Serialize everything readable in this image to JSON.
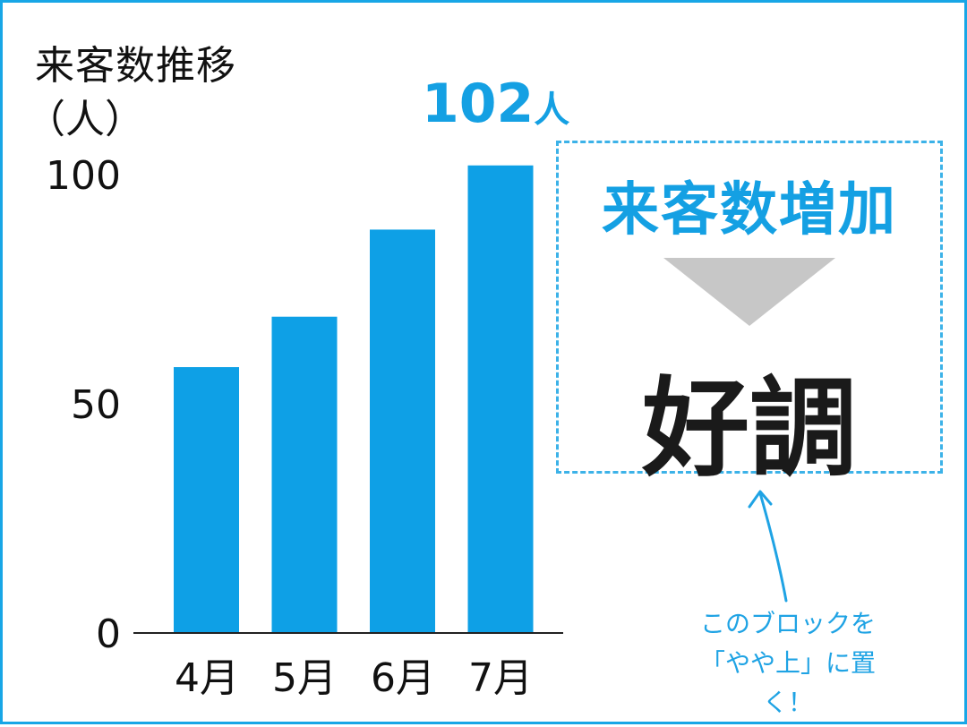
{
  "chart_data": {
    "type": "bar",
    "title": "来客数推移",
    "ylabel": "（人）",
    "categories": [
      "4月",
      "5月",
      "6月",
      "7月"
    ],
    "values": [
      58,
      69,
      88,
      102
    ],
    "ylim": [
      0,
      100
    ],
    "yticks": [
      "100",
      "50",
      "0"
    ],
    "grid": false,
    "bar_color": "#0ea0e6"
  },
  "callout": {
    "value": "102",
    "unit": "人",
    "color": "#14a0e3"
  },
  "summary": {
    "increase_label": "来客数増加",
    "result_label": "好調",
    "arrow_color": "#c7c7c7"
  },
  "note": {
    "line1": "このブロックを",
    "line2": "「やや上」に置く！",
    "color": "#1fa3e4"
  }
}
